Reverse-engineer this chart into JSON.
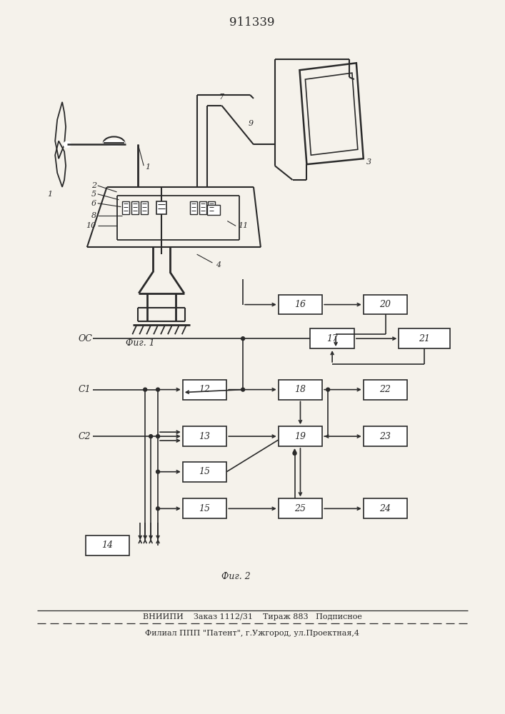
{
  "title": "911339",
  "fig1_caption": "Фиг. 1",
  "fig2_caption": "Фиг. 2",
  "footer_line1": "ВНИИПИ    Заказ 1112/31    Тираж 883   Подписное",
  "footer_line2": "Филиал ППП \"Патент\", г.Ужгород, ул.Проектная,4",
  "bg_color": "#f5f2eb",
  "line_color": "#2a2a2a"
}
